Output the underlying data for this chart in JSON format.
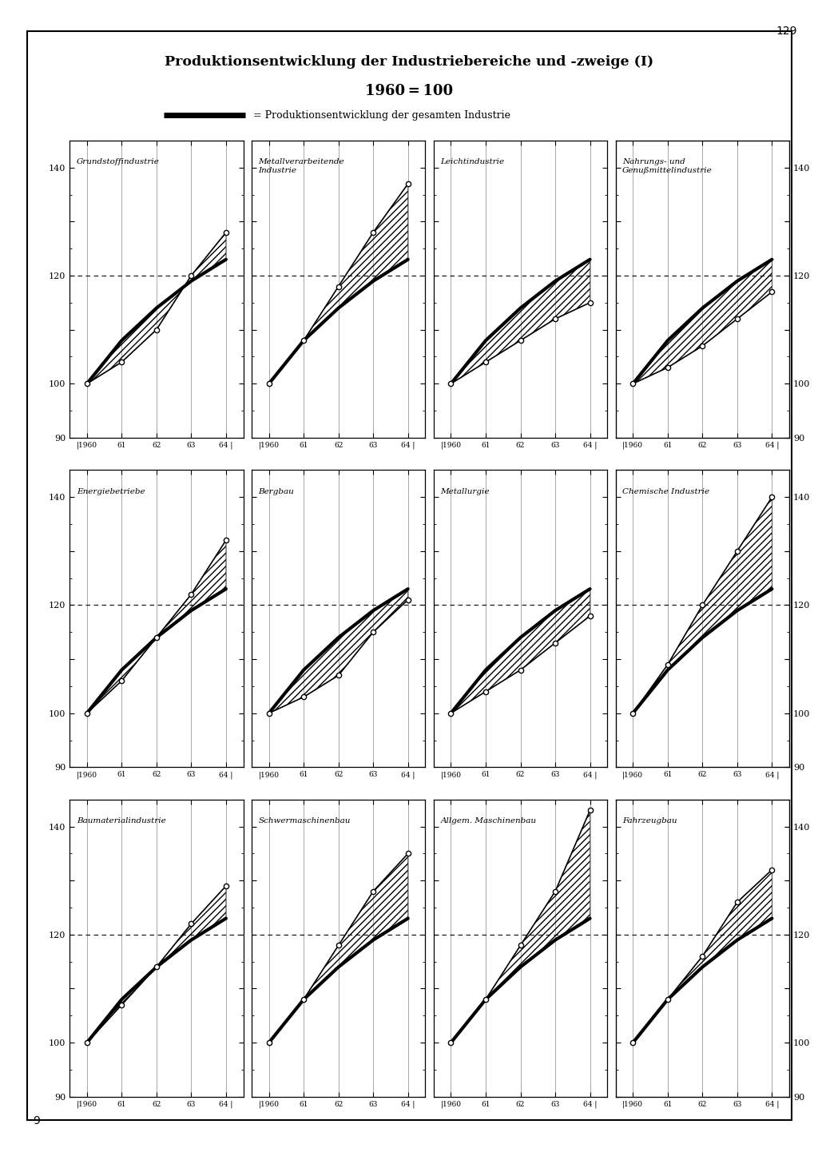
{
  "title_line1": "Produktionsentwicklung der Industriebereiche und -zweige (I)",
  "title_line2": "1960 = 100",
  "legend_text": "= Produktionsentwicklung der gesamten Industrie",
  "page_number": "129",
  "bottom_label": "9",
  "ylim": [
    90,
    145
  ],
  "yticks": [
    90,
    100,
    110,
    120,
    130,
    140
  ],
  "ytick_labels_left": [
    "90",
    "100",
    "",
    "120",
    "",
    "140"
  ],
  "ytick_labels_right": [
    "90",
    "100",
    "",
    "120",
    "",
    "140"
  ],
  "xvals": [
    0,
    1,
    2,
    3,
    4
  ],
  "xlabels": [
    "|1960",
    "61",
    "62",
    "63",
    "64 |"
  ],
  "overall_industry": [
    100,
    108,
    114,
    119,
    123
  ],
  "charts": [
    {
      "title": "Grundstoffindustrie",
      "sector_vals": [
        100,
        104,
        110,
        120,
        128
      ],
      "row": 0,
      "col": 0
    },
    {
      "title": "Metallverarbeitende\nIndustrie",
      "sector_vals": [
        100,
        108,
        118,
        128,
        137
      ],
      "row": 0,
      "col": 1
    },
    {
      "title": "Leichtindustrie",
      "sector_vals": [
        100,
        104,
        108,
        112,
        115
      ],
      "row": 0,
      "col": 2
    },
    {
      "title": "Nahrungs- und\nGenußmittelindustrie",
      "sector_vals": [
        100,
        103,
        107,
        112,
        117
      ],
      "row": 0,
      "col": 3
    },
    {
      "title": "Energiebetriebe",
      "sector_vals": [
        100,
        106,
        114,
        122,
        132
      ],
      "row": 1,
      "col": 0
    },
    {
      "title": "Bergbau",
      "sector_vals": [
        100,
        103,
        107,
        115,
        121
      ],
      "row": 1,
      "col": 1
    },
    {
      "title": "Metallurgie",
      "sector_vals": [
        100,
        104,
        108,
        113,
        118
      ],
      "row": 1,
      "col": 2
    },
    {
      "title": "Chemische Industrie",
      "sector_vals": [
        100,
        109,
        120,
        130,
        140
      ],
      "row": 1,
      "col": 3
    },
    {
      "title": "Baumaterialindustrie",
      "sector_vals": [
        100,
        107,
        114,
        122,
        129
      ],
      "row": 2,
      "col": 0
    },
    {
      "title": "Schwermaschinenbau",
      "sector_vals": [
        100,
        108,
        118,
        128,
        135
      ],
      "row": 2,
      "col": 1
    },
    {
      "title": "Allgem. Maschinenbau",
      "sector_vals": [
        100,
        108,
        118,
        128,
        143
      ],
      "row": 2,
      "col": 2
    },
    {
      "title": "Fahrzeugbau",
      "sector_vals": [
        100,
        108,
        116,
        126,
        132
      ],
      "row": 2,
      "col": 3
    }
  ]
}
